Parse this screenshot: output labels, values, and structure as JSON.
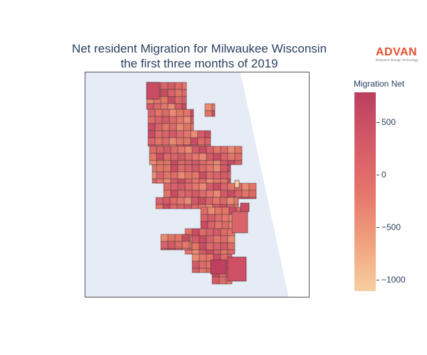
{
  "title": {
    "line1": "Net resident Migration for Milwaukee Wisconsin",
    "line2": "the first three months of 2019"
  },
  "logo": {
    "name": "ADVAN",
    "tagline": "Research through Technology",
    "color": "#e2522f"
  },
  "colorbar": {
    "title": "Migration Net",
    "tick_labels": [
      "500",
      "0",
      "−500",
      "−1000"
    ],
    "tick_values": [
      500,
      0,
      -500,
      -1000
    ],
    "range": [
      -1120,
      790
    ],
    "colorscale": [
      "#f7cfa0",
      "#f0a07c",
      "#e5756d",
      "#d35a66",
      "#b9405f"
    ]
  },
  "map": {
    "land_color": "#e5ecf6",
    "water_color": "#ffffff",
    "boundary_color": "#4a3a3e",
    "region_fill": "#e27666"
  }
}
